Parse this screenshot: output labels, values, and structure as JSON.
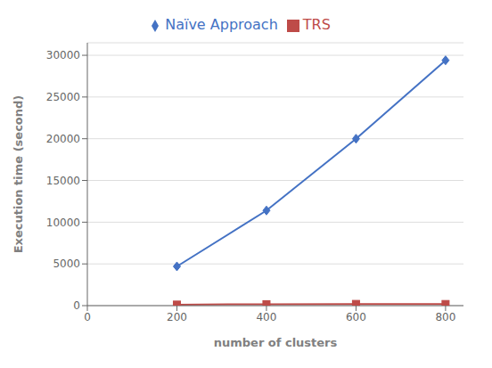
{
  "chart_data": {
    "type": "line",
    "x": [
      200,
      400,
      600,
      800
    ],
    "series": [
      {
        "name": "Naïve Approach",
        "color": "#4472C4",
        "values": [
          4700,
          11400,
          20000,
          29400
        ],
        "marker": "diamond"
      },
      {
        "name": "TRS",
        "color": "#BE4B48",
        "values": [
          120,
          170,
          200,
          190
        ],
        "marker": "square"
      }
    ],
    "xlabel": "number of clusters",
    "ylabel": "Execution time (second)",
    "xlim": [
      0,
      840
    ],
    "ylim": [
      0,
      31500
    ],
    "xticks": [
      0,
      200,
      400,
      600,
      800
    ],
    "yticks": [
      0,
      5000,
      10000,
      15000,
      20000,
      25000,
      30000
    ],
    "grid": true,
    "legend": "top"
  }
}
